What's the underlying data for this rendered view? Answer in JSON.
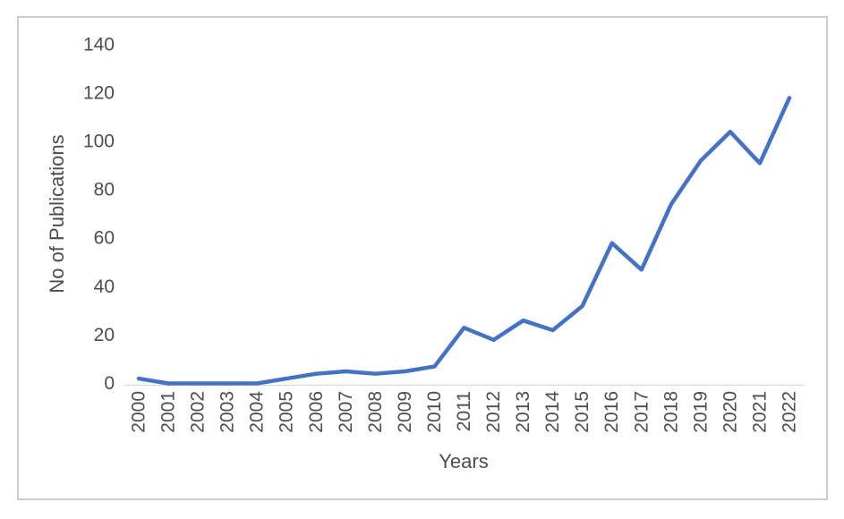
{
  "chart_data": {
    "type": "line",
    "title": "",
    "xlabel": "Years",
    "ylabel": "No of Publications",
    "categories": [
      "2000",
      "2001",
      "2002",
      "2003",
      "2004",
      "2005",
      "2006",
      "2007",
      "2008",
      "2009",
      "2010",
      "2011",
      "2012",
      "2013",
      "2014",
      "2015",
      "2016",
      "2017",
      "2018",
      "2019",
      "2020",
      "2021",
      "2022"
    ],
    "values": [
      2,
      0,
      0,
      0,
      0,
      2,
      4,
      5,
      4,
      5,
      7,
      23,
      18,
      26,
      22,
      32,
      58,
      47,
      74,
      92,
      104,
      91,
      118
    ],
    "ylim": [
      0,
      140
    ],
    "yticks": [
      0,
      20,
      40,
      60,
      80,
      100,
      120,
      140
    ],
    "grid": false,
    "legend": "none",
    "line_color": "#4472C4",
    "axis_line_color": "#D9D9D9",
    "label_color": "#4D4D4D",
    "frame_border_color": "#CCCCCC"
  }
}
